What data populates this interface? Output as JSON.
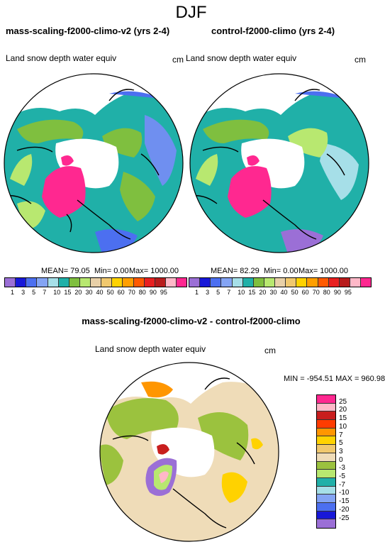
{
  "title": "DJF",
  "panels": [
    {
      "title": "mass-scaling-f2000-climo-v2 (yrs 2-4)",
      "variable": "Land snow depth water equiv",
      "units": "cm",
      "stats": {
        "mean": "MEAN=  79.05",
        "min": "Min=   0.00",
        "max": "Max= 1000.00"
      }
    },
    {
      "title": "control-f2000-climo (yrs 2-4)",
      "variable": "Land snow depth water equiv",
      "units": "cm",
      "stats": {
        "mean": "MEAN=  82.29",
        "min": "Min=   0.00",
        "max": "Max= 1000.00"
      }
    },
    {
      "title": "mass-scaling-f2000-climo-v2 - control-f2000-climo",
      "variable": "Land snow depth water equiv",
      "units": "cm",
      "stats": {
        "minmax": "MIN = -954.51 MAX = 960.98"
      }
    }
  ],
  "abs_colorbar": {
    "labels": [
      "1",
      "3",
      "5",
      "7",
      "10",
      "15",
      "20",
      "30",
      "40",
      "50",
      "60",
      "70",
      "80",
      "90",
      "95"
    ],
    "colors": [
      "#9b6fd6",
      "#1818d8",
      "#4c6ff0",
      "#84a4f4",
      "#a6dfe8",
      "#20b0a8",
      "#7fbf3f",
      "#b8e870",
      "#e8d0a8",
      "#f0c86e",
      "#ffd200",
      "#ff9f00",
      "#ff5a00",
      "#e82020",
      "#b81c1c",
      "#ffb8c8",
      "#ff2890"
    ]
  },
  "diff_colorbar": {
    "labels": [
      "25",
      "20",
      "15",
      "10",
      "7",
      "5",
      "3",
      "0",
      "-3",
      "-5",
      "-7",
      "-10",
      "-15",
      "-20",
      "-25"
    ],
    "colors": [
      "#ff2890",
      "#ffb8c8",
      "#c81e1e",
      "#ff3c00",
      "#ff9600",
      "#ffd200",
      "#f0c86e",
      "#efdcb8",
      "#9bc23e",
      "#b8e870",
      "#20b0a8",
      "#a6dfe8",
      "#84a4f4",
      "#4c6ff0",
      "#1818d8",
      "#9b6fd6"
    ]
  }
}
